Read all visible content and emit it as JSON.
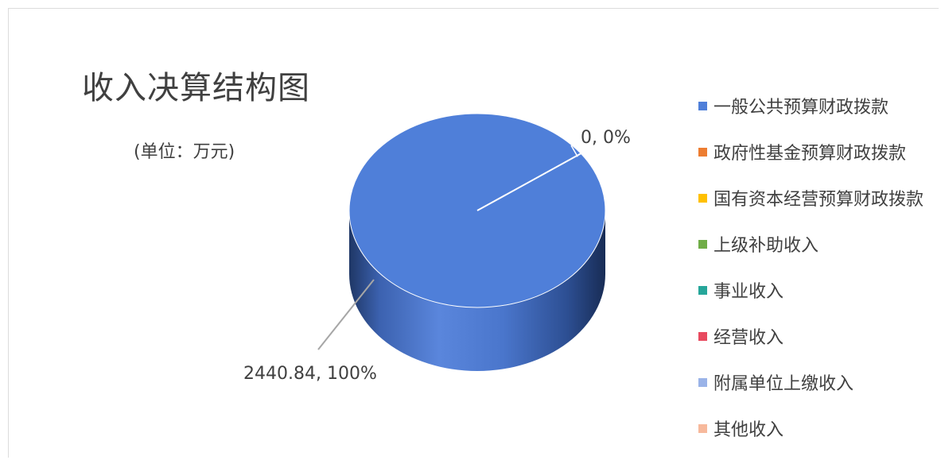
{
  "chart_data": {
    "type": "pie",
    "title": "收入决算结构图",
    "subtitle": "(单位：万元)",
    "three_d": true,
    "legend_placement": "right",
    "categories": [
      "一般公共预算财政拨款",
      "政府性基金预算财政拨款",
      "国有资本经营预算财政拨款",
      "上级补助收入",
      "事业收入",
      "经营收入",
      "附属单位上缴收入",
      "其他收入"
    ],
    "values": [
      2440.84,
      0,
      0,
      0,
      0,
      0,
      0,
      0
    ],
    "colors": [
      "#4f7fd9",
      "#ed7d31",
      "#ffc000",
      "#70ad47",
      "#26a69a",
      "#e84a5f",
      "#9ab3e8",
      "#f7b99c"
    ],
    "data_labels": [
      {
        "text": "2440.84, 100%"
      },
      {
        "text": "0, 0%"
      }
    ]
  }
}
